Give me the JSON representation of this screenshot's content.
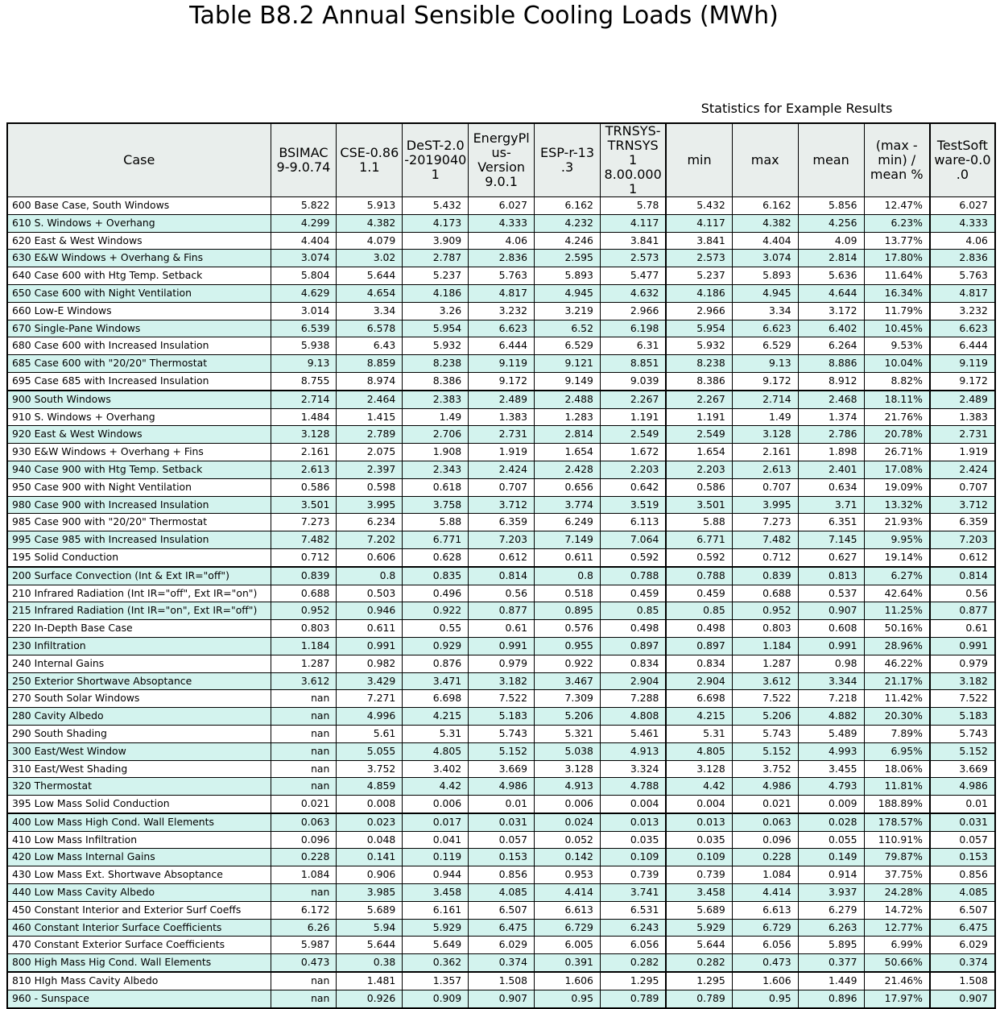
{
  "chart_data": {
    "type": "table",
    "title": "Table B8.2 Annual Sensible Cooling Loads (MWh)",
    "stats_label": "Statistics for Example Results",
    "columns": [
      "Case",
      "BSIMAC 9-9.0.74",
      "CSE-0.86 1.1",
      "DeST-2.0 -2019040 1",
      "EnergyPlus-Version 9.0.1",
      "ESP-r-13 .3",
      "TRNSYS-TRNSYS 18.00.000 1",
      "min",
      "max",
      "mean",
      "(max - min) / mean %",
      "TestSoftware-0.0 .0"
    ],
    "column_headers": [
      "Case",
      "BSIMAC\n9-9.0.74",
      "CSE-0.86\n1.1",
      "DeST-2.0\n-2019040\n1",
      "EnergyPl\nus-\nVersion\n9.0.1",
      "ESP-r-13\n.3",
      "TRNSYS-\nTRNSYS 1\n8.00.000\n1",
      "min",
      "max",
      "mean",
      "(max -\nmin) /\nmean %",
      "TestSoft\nware-0.0\n.0"
    ],
    "rows": [
      [
        "600 Base Case, South Windows",
        "5.822",
        "5.913",
        "5.432",
        "6.027",
        "6.162",
        "5.78",
        "5.432",
        "6.162",
        "5.856",
        "12.47%",
        "6.027"
      ],
      [
        "610 S. Windows + Overhang",
        "4.299",
        "4.382",
        "4.173",
        "4.333",
        "4.232",
        "4.117",
        "4.117",
        "4.382",
        "4.256",
        "6.23%",
        "4.333"
      ],
      [
        "620 East & West Windows",
        "4.404",
        "4.079",
        "3.909",
        "4.06",
        "4.246",
        "3.841",
        "3.841",
        "4.404",
        "4.09",
        "13.77%",
        "4.06"
      ],
      [
        "630 E&W Windows + Overhang & Fins",
        "3.074",
        "3.02",
        "2.787",
        "2.836",
        "2.595",
        "2.573",
        "2.573",
        "3.074",
        "2.814",
        "17.80%",
        "2.836"
      ],
      [
        "640 Case 600 with Htg Temp. Setback",
        "5.804",
        "5.644",
        "5.237",
        "5.763",
        "5.893",
        "5.477",
        "5.237",
        "5.893",
        "5.636",
        "11.64%",
        "5.763"
      ],
      [
        "650 Case 600 with Night Ventilation",
        "4.629",
        "4.654",
        "4.186",
        "4.817",
        "4.945",
        "4.632",
        "4.186",
        "4.945",
        "4.644",
        "16.34%",
        "4.817"
      ],
      [
        "660 Low-E Windows",
        "3.014",
        "3.34",
        "3.26",
        "3.232",
        "3.219",
        "2.966",
        "2.966",
        "3.34",
        "3.172",
        "11.79%",
        "3.232"
      ],
      [
        "670 Single-Pane Windows",
        "6.539",
        "6.578",
        "5.954",
        "6.623",
        "6.52",
        "6.198",
        "5.954",
        "6.623",
        "6.402",
        "10.45%",
        "6.623"
      ],
      [
        "680 Case 600 with Increased Insulation",
        "5.938",
        "6.43",
        "5.932",
        "6.444",
        "6.529",
        "6.31",
        "5.932",
        "6.529",
        "6.264",
        "9.53%",
        "6.444"
      ],
      [
        "685 Case 600 with \"20/20\" Thermostat",
        "9.13",
        "8.859",
        "8.238",
        "9.119",
        "9.121",
        "8.851",
        "8.238",
        "9.13",
        "8.886",
        "10.04%",
        "9.119"
      ],
      [
        "695 Case 685 with Increased Insulation",
        "8.755",
        "8.974",
        "8.386",
        "9.172",
        "9.149",
        "9.039",
        "8.386",
        "9.172",
        "8.912",
        "8.82%",
        "9.172"
      ],
      [
        "900 South Windows",
        "2.714",
        "2.464",
        "2.383",
        "2.489",
        "2.488",
        "2.267",
        "2.267",
        "2.714",
        "2.468",
        "18.11%",
        "2.489"
      ],
      [
        "910 S. Windows + Overhang",
        "1.484",
        "1.415",
        "1.49",
        "1.383",
        "1.283",
        "1.191",
        "1.191",
        "1.49",
        "1.374",
        "21.76%",
        "1.383"
      ],
      [
        "920 East & West Windows",
        "3.128",
        "2.789",
        "2.706",
        "2.731",
        "2.814",
        "2.549",
        "2.549",
        "3.128",
        "2.786",
        "20.78%",
        "2.731"
      ],
      [
        "930 E&W Windows + Overhang + Fins",
        "2.161",
        "2.075",
        "1.908",
        "1.919",
        "1.654",
        "1.672",
        "1.654",
        "2.161",
        "1.898",
        "26.71%",
        "1.919"
      ],
      [
        "940 Case 900 with Htg Temp. Setback",
        "2.613",
        "2.397",
        "2.343",
        "2.424",
        "2.428",
        "2.203",
        "2.203",
        "2.613",
        "2.401",
        "17.08%",
        "2.424"
      ],
      [
        "950 Case 900 with Night Ventilation",
        "0.586",
        "0.598",
        "0.618",
        "0.707",
        "0.656",
        "0.642",
        "0.586",
        "0.707",
        "0.634",
        "19.09%",
        "0.707"
      ],
      [
        "980 Case 900 with Increased Insulation",
        "3.501",
        "3.995",
        "3.758",
        "3.712",
        "3.774",
        "3.519",
        "3.501",
        "3.995",
        "3.71",
        "13.32%",
        "3.712"
      ],
      [
        "985 Case 900 with \"20/20\" Thermostat",
        "7.273",
        "6.234",
        "5.88",
        "6.359",
        "6.249",
        "6.113",
        "5.88",
        "7.273",
        "6.351",
        "21.93%",
        "6.359"
      ],
      [
        "995 Case 985 with Increased Insulation",
        "7.482",
        "7.202",
        "6.771",
        "7.203",
        "7.149",
        "7.064",
        "6.771",
        "7.482",
        "7.145",
        "9.95%",
        "7.203"
      ],
      [
        "195 Solid Conduction",
        "0.712",
        "0.606",
        "0.628",
        "0.612",
        "0.611",
        "0.592",
        "0.592",
        "0.712",
        "0.627",
        "19.14%",
        "0.612"
      ],
      [
        "200 Surface Convection (Int & Ext IR=\"off\")",
        "0.839",
        "0.8",
        "0.835",
        "0.814",
        "0.8",
        "0.788",
        "0.788",
        "0.839",
        "0.813",
        "6.27%",
        "0.814"
      ],
      [
        "210 Infrared Radiation (Int IR=\"off\", Ext IR=\"on\")",
        "0.688",
        "0.503",
        "0.496",
        "0.56",
        "0.518",
        "0.459",
        "0.459",
        "0.688",
        "0.537",
        "42.64%",
        "0.56"
      ],
      [
        "215 Infrared Radiation (Int IR=\"on\", Ext IR=\"off\")",
        "0.952",
        "0.946",
        "0.922",
        "0.877",
        "0.895",
        "0.85",
        "0.85",
        "0.952",
        "0.907",
        "11.25%",
        "0.877"
      ],
      [
        "220 In-Depth Base Case",
        "0.803",
        "0.611",
        "0.55",
        "0.61",
        "0.576",
        "0.498",
        "0.498",
        "0.803",
        "0.608",
        "50.16%",
        "0.61"
      ],
      [
        "230 Infiltration",
        "1.184",
        "0.991",
        "0.929",
        "0.991",
        "0.955",
        "0.897",
        "0.897",
        "1.184",
        "0.991",
        "28.96%",
        "0.991"
      ],
      [
        "240 Internal Gains",
        "1.287",
        "0.982",
        "0.876",
        "0.979",
        "0.922",
        "0.834",
        "0.834",
        "1.287",
        "0.98",
        "46.22%",
        "0.979"
      ],
      [
        "250 Exterior Shortwave Absoptance",
        "3.612",
        "3.429",
        "3.471",
        "3.182",
        "3.467",
        "2.904",
        "2.904",
        "3.612",
        "3.344",
        "21.17%",
        "3.182"
      ],
      [
        "270 South Solar Windows",
        "nan",
        "7.271",
        "6.698",
        "7.522",
        "7.309",
        "7.288",
        "6.698",
        "7.522",
        "7.218",
        "11.42%",
        "7.522"
      ],
      [
        "280 Cavity Albedo",
        "nan",
        "4.996",
        "4.215",
        "5.183",
        "5.206",
        "4.808",
        "4.215",
        "5.206",
        "4.882",
        "20.30%",
        "5.183"
      ],
      [
        "290 South Shading",
        "nan",
        "5.61",
        "5.31",
        "5.743",
        "5.321",
        "5.461",
        "5.31",
        "5.743",
        "5.489",
        "7.89%",
        "5.743"
      ],
      [
        "300 East/West Window",
        "nan",
        "5.055",
        "4.805",
        "5.152",
        "5.038",
        "4.913",
        "4.805",
        "5.152",
        "4.993",
        "6.95%",
        "5.152"
      ],
      [
        "310 East/West Shading",
        "nan",
        "3.752",
        "3.402",
        "3.669",
        "3.128",
        "3.324",
        "3.128",
        "3.752",
        "3.455",
        "18.06%",
        "3.669"
      ],
      [
        "320 Thermostat",
        "nan",
        "4.859",
        "4.42",
        "4.986",
        "4.913",
        "4.788",
        "4.42",
        "4.986",
        "4.793",
        "11.81%",
        "4.986"
      ],
      [
        "395 Low Mass Solid Conduction",
        "0.021",
        "0.008",
        "0.006",
        "0.01",
        "0.006",
        "0.004",
        "0.004",
        "0.021",
        "0.009",
        "188.89%",
        "0.01"
      ],
      [
        "400 Low Mass High Cond. Wall Elements",
        "0.063",
        "0.023",
        "0.017",
        "0.031",
        "0.024",
        "0.013",
        "0.013",
        "0.063",
        "0.028",
        "178.57%",
        "0.031"
      ],
      [
        "410 Low Mass Infiltration",
        "0.096",
        "0.048",
        "0.041",
        "0.057",
        "0.052",
        "0.035",
        "0.035",
        "0.096",
        "0.055",
        "110.91%",
        "0.057"
      ],
      [
        "420 Low Mass Internal Gains",
        "0.228",
        "0.141",
        "0.119",
        "0.153",
        "0.142",
        "0.109",
        "0.109",
        "0.228",
        "0.149",
        "79.87%",
        "0.153"
      ],
      [
        "430 Low Mass Ext. Shortwave Absoptance",
        "1.084",
        "0.906",
        "0.944",
        "0.856",
        "0.953",
        "0.739",
        "0.739",
        "1.084",
        "0.914",
        "37.75%",
        "0.856"
      ],
      [
        "440 Low Mass Cavity Albedo",
        "nan",
        "3.985",
        "3.458",
        "4.085",
        "4.414",
        "3.741",
        "3.458",
        "4.414",
        "3.937",
        "24.28%",
        "4.085"
      ],
      [
        "450 Constant Interior and Exterior Surf Coeffs",
        "6.172",
        "5.689",
        "6.161",
        "6.507",
        "6.613",
        "6.531",
        "5.689",
        "6.613",
        "6.279",
        "14.72%",
        "6.507"
      ],
      [
        "460 Constant Interior Surface Coefficients",
        "6.26",
        "5.94",
        "5.929",
        "6.475",
        "6.729",
        "6.243",
        "5.929",
        "6.729",
        "6.263",
        "12.77%",
        "6.475"
      ],
      [
        "470 Constant Exterior Surface Coefficients",
        "5.987",
        "5.644",
        "5.649",
        "6.029",
        "6.005",
        "6.056",
        "5.644",
        "6.056",
        "5.895",
        "6.99%",
        "6.029"
      ],
      [
        "800 High Mass Hig Cond. Wall Elements",
        "0.473",
        "0.38",
        "0.362",
        "0.374",
        "0.391",
        "0.282",
        "0.282",
        "0.473",
        "0.377",
        "50.66%",
        "0.374"
      ],
      [
        "810 HIgh Mass Cavity Albedo",
        "nan",
        "1.481",
        "1.357",
        "1.508",
        "1.606",
        "1.295",
        "1.295",
        "1.606",
        "1.449",
        "21.46%",
        "1.508"
      ],
      [
        "960 - Sunspace",
        "nan",
        "0.926",
        "0.909",
        "0.907",
        "0.95",
        "0.789",
        "0.789",
        "0.95",
        "0.896",
        "17.97%",
        "0.907"
      ]
    ],
    "group_start_rows": [
      11,
      21,
      35,
      44
    ],
    "colors": {
      "header_bg": "#e9eeec",
      "alt_row_bg": "#d3f3ee",
      "row_bg": "#ffffff",
      "border": "#000000"
    }
  }
}
